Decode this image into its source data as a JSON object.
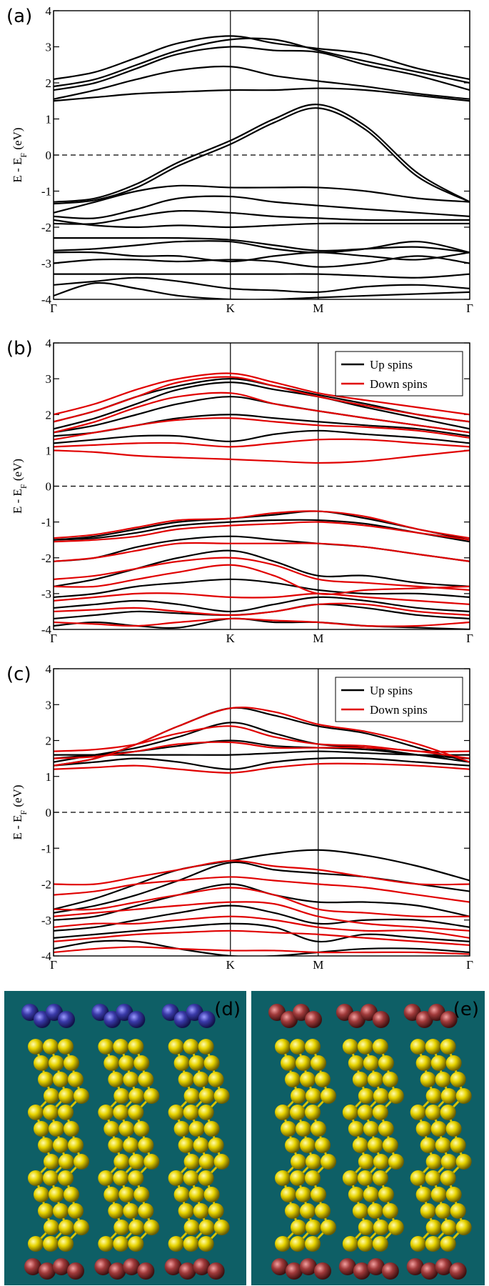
{
  "chart_data": [
    {
      "type": "line",
      "label": "(a)",
      "ylabel": {
        "text": "E - E",
        "sub": "F",
        "unit": " (eV)"
      },
      "x": [
        0,
        0.1,
        0.2,
        0.3,
        0.425,
        0.53,
        0.636,
        0.75,
        0.875,
        1
      ],
      "xlim": [
        0,
        1
      ],
      "xticks": [
        {
          "value": 0,
          "label": "Γ"
        },
        {
          "value": 0.425,
          "label": "K"
        },
        {
          "value": 0.636,
          "label": "M"
        },
        {
          "value": 1,
          "label": "Γ"
        }
      ],
      "ylim": [
        -4,
        4
      ],
      "yticks": [
        -4,
        -3,
        -2,
        -1,
        0,
        1,
        2,
        3,
        4
      ],
      "hline": 0,
      "series": [
        {
          "color": "#000000",
          "bands": [
            [
              2.1,
              2.3,
              2.7,
              3.1,
              3.3,
              3.1,
              2.95,
              2.8,
              2.4,
              2.1
            ],
            [
              1.9,
              2.1,
              2.5,
              2.9,
              3.2,
              3.2,
              2.9,
              2.6,
              2.3,
              2.0
            ],
            [
              1.8,
              2.0,
              2.4,
              2.8,
              3.0,
              2.9,
              2.85,
              2.5,
              2.2,
              1.8
            ],
            [
              1.55,
              1.8,
              2.1,
              2.35,
              2.45,
              2.2,
              2.05,
              1.9,
              1.7,
              1.55
            ],
            [
              1.5,
              1.6,
              1.7,
              1.75,
              1.8,
              1.8,
              1.85,
              1.8,
              1.65,
              1.5
            ],
            [
              -1.3,
              -1.2,
              -0.8,
              -0.2,
              0.4,
              1.0,
              1.4,
              0.8,
              -0.5,
              -1.3
            ],
            [
              -1.35,
              -1.25,
              -0.9,
              -0.3,
              0.3,
              0.9,
              1.3,
              0.7,
              -0.6,
              -1.3
            ],
            [
              -1.6,
              -1.3,
              -1.0,
              -0.85,
              -0.9,
              -0.9,
              -0.9,
              -1.0,
              -1.2,
              -1.3
            ],
            [
              -1.7,
              -1.75,
              -1.5,
              -1.2,
              -1.15,
              -1.3,
              -1.4,
              -1.5,
              -1.6,
              -1.7
            ],
            [
              -1.9,
              -1.9,
              -1.7,
              -1.55,
              -1.6,
              -1.7,
              -1.75,
              -1.8,
              -1.8,
              -1.8
            ],
            [
              -1.8,
              -1.95,
              -2.0,
              -1.95,
              -2.0,
              -1.95,
              -1.9,
              -1.9,
              -1.9,
              -1.9
            ],
            [
              -2.3,
              -2.3,
              -2.3,
              -2.3,
              -2.35,
              -2.5,
              -2.65,
              -2.6,
              -2.55,
              -2.7
            ],
            [
              -2.65,
              -2.6,
              -2.5,
              -2.4,
              -2.4,
              -2.6,
              -2.7,
              -2.6,
              -2.4,
              -2.7
            ],
            [
              -2.7,
              -2.7,
              -2.8,
              -2.8,
              -2.95,
              -2.8,
              -2.7,
              -2.8,
              -2.9,
              -2.7
            ],
            [
              -3.0,
              -2.9,
              -2.9,
              -2.95,
              -2.9,
              -2.95,
              -3.1,
              -3.0,
              -2.8,
              -3.0
            ],
            [
              -3.3,
              -3.3,
              -3.3,
              -3.3,
              -3.3,
              -3.3,
              -3.3,
              -3.35,
              -3.4,
              -3.3
            ],
            [
              -3.6,
              -3.5,
              -3.4,
              -3.5,
              -3.7,
              -3.75,
              -3.8,
              -3.65,
              -3.6,
              -3.7
            ],
            [
              -3.9,
              -3.55,
              -3.7,
              -3.9,
              -4.0,
              -4.0,
              -3.95,
              -3.9,
              -3.85,
              -3.8
            ]
          ]
        }
      ]
    },
    {
      "type": "line",
      "label": "(b)",
      "ylabel": {
        "text": "E - E",
        "sub": "F",
        "unit": " (eV)"
      },
      "x": [
        0,
        0.1,
        0.2,
        0.3,
        0.425,
        0.53,
        0.636,
        0.75,
        0.875,
        1
      ],
      "xlim": [
        0,
        1
      ],
      "xticks": [
        {
          "value": 0,
          "label": "Γ"
        },
        {
          "value": 0.425,
          "label": "K"
        },
        {
          "value": 0.636,
          "label": "M"
        },
        {
          "value": 1,
          "label": "Γ"
        }
      ],
      "ylim": [
        -4,
        4
      ],
      "yticks": [
        -4,
        -3,
        -2,
        -1,
        0,
        1,
        2,
        3,
        4
      ],
      "hline": 0,
      "legend": "upper right",
      "series": [
        {
          "name": "Up spins",
          "color": "#000000",
          "bands": [
            [
              1.8,
              2.1,
              2.5,
              2.8,
              3.0,
              2.8,
              2.55,
              2.3,
              2.0,
              1.8
            ],
            [
              1.6,
              1.9,
              2.3,
              2.7,
              2.9,
              2.7,
              2.5,
              2.2,
              1.9,
              1.6
            ],
            [
              1.5,
              1.7,
              2.0,
              2.3,
              2.5,
              2.3,
              2.1,
              1.9,
              1.7,
              1.5
            ],
            [
              1.4,
              1.5,
              1.7,
              1.9,
              2.0,
              1.9,
              1.8,
              1.7,
              1.6,
              1.4
            ],
            [
              1.2,
              1.3,
              1.4,
              1.4,
              1.25,
              1.45,
              1.55,
              1.45,
              1.35,
              1.2
            ],
            [
              -1.5,
              -1.4,
              -1.2,
              -1.0,
              -0.9,
              -0.8,
              -0.7,
              -0.9,
              -1.2,
              -1.5
            ],
            [
              -1.5,
              -1.45,
              -1.3,
              -1.1,
              -1.0,
              -0.95,
              -0.95,
              -1.05,
              -1.3,
              -1.55
            ],
            [
              -2.1,
              -2.0,
              -1.7,
              -1.5,
              -1.4,
              -1.5,
              -1.6,
              -1.7,
              -1.9,
              -2.1
            ],
            [
              -2.8,
              -2.6,
              -2.3,
              -2.0,
              -1.8,
              -2.1,
              -2.5,
              -2.5,
              -2.7,
              -2.8
            ],
            [
              -3.1,
              -3.0,
              -2.8,
              -2.7,
              -2.6,
              -2.7,
              -2.9,
              -3.0,
              -3.0,
              -3.1
            ],
            [
              -3.4,
              -3.3,
              -3.2,
              -3.3,
              -3.5,
              -3.3,
              -3.1,
              -3.2,
              -3.4,
              -3.5
            ],
            [
              -3.7,
              -3.6,
              -3.5,
              -3.55,
              -3.6,
              -3.5,
              -3.3,
              -3.4,
              -3.6,
              -3.7
            ],
            [
              -3.9,
              -3.8,
              -3.9,
              -3.95,
              -3.7,
              -3.8,
              -3.8,
              -3.9,
              -3.95,
              -4.0
            ]
          ]
        },
        {
          "name": "Down spins",
          "color": "#e00000",
          "bands": [
            [
              2.0,
              2.3,
              2.7,
              3.0,
              3.15,
              2.9,
              2.6,
              2.4,
              2.2,
              2.0
            ],
            [
              1.8,
              2.1,
              2.5,
              2.9,
              3.05,
              2.8,
              2.5,
              2.25,
              2.0,
              1.8
            ],
            [
              1.5,
              1.8,
              2.2,
              2.5,
              2.6,
              2.3,
              2.1,
              1.9,
              1.7,
              1.5
            ],
            [
              1.3,
              1.5,
              1.7,
              1.85,
              1.9,
              1.8,
              1.7,
              1.65,
              1.55,
              1.35
            ],
            [
              1.1,
              1.15,
              1.2,
              1.2,
              1.1,
              1.2,
              1.3,
              1.3,
              1.2,
              1.1
            ],
            [
              1.0,
              0.95,
              0.85,
              0.8,
              0.75,
              0.7,
              0.65,
              0.7,
              0.85,
              1.0
            ],
            [
              -1.45,
              -1.35,
              -1.15,
              -0.95,
              -0.9,
              -0.75,
              -0.7,
              -0.85,
              -1.2,
              -1.45
            ],
            [
              -1.55,
              -1.5,
              -1.4,
              -1.2,
              -1.1,
              -1.05,
              -1.0,
              -1.1,
              -1.3,
              -1.5
            ],
            [
              -2.1,
              -2.0,
              -1.8,
              -1.6,
              -1.6,
              -1.6,
              -1.6,
              -1.7,
              -1.9,
              -2.1
            ],
            [
              -2.6,
              -2.5,
              -2.3,
              -2.1,
              -2.0,
              -2.2,
              -2.6,
              -2.7,
              -2.8,
              -2.9
            ],
            [
              -2.8,
              -2.8,
              -2.6,
              -2.4,
              -2.2,
              -2.5,
              -3.0,
              -2.9,
              -2.85,
              -2.8
            ],
            [
              -3.2,
              -3.1,
              -3.0,
              -3.0,
              -3.1,
              -3.1,
              -3.0,
              -3.1,
              -3.2,
              -3.3
            ],
            [
              -3.5,
              -3.45,
              -3.4,
              -3.5,
              -3.6,
              -3.5,
              -3.3,
              -3.3,
              -3.5,
              -3.6
            ],
            [
              -3.8,
              -3.85,
              -3.9,
              -3.8,
              -3.7,
              -3.75,
              -3.8,
              -3.9,
              -3.9,
              -3.8
            ]
          ]
        }
      ]
    },
    {
      "type": "line",
      "label": "(c)",
      "ylabel": {
        "text": "E - E",
        "sub": "F",
        "unit": " (eV)"
      },
      "x": [
        0,
        0.1,
        0.2,
        0.3,
        0.425,
        0.53,
        0.636,
        0.75,
        0.875,
        1
      ],
      "xlim": [
        0,
        1
      ],
      "xticks": [
        {
          "value": 0,
          "label": "Γ"
        },
        {
          "value": 0.425,
          "label": "K"
        },
        {
          "value": 0.636,
          "label": "M"
        },
        {
          "value": 1,
          "label": "Γ"
        }
      ],
      "ylim": [
        -4,
        4
      ],
      "yticks": [
        -4,
        -3,
        -2,
        -1,
        0,
        1,
        2,
        3,
        4
      ],
      "hline": 0,
      "legend": "upper right",
      "series": [
        {
          "name": "Up spins",
          "color": "#000000",
          "bands": [
            [
              1.3,
              1.5,
              1.9,
              2.4,
              2.9,
              2.7,
              2.4,
              2.2,
              1.8,
              1.4
            ],
            [
              1.4,
              1.6,
              1.8,
              2.1,
              2.5,
              2.2,
              1.9,
              1.8,
              1.6,
              1.4
            ],
            [
              1.5,
              1.6,
              1.7,
              1.85,
              2.0,
              1.85,
              1.8,
              1.75,
              1.6,
              1.5
            ],
            [
              1.6,
              1.6,
              1.6,
              1.6,
              1.6,
              1.65,
              1.7,
              1.65,
              1.6,
              1.6
            ],
            [
              1.3,
              1.4,
              1.5,
              1.4,
              1.2,
              1.4,
              1.5,
              1.5,
              1.4,
              1.3
            ],
            [
              -2.7,
              -2.4,
              -2.0,
              -1.6,
              -1.35,
              -1.15,
              -1.05,
              -1.2,
              -1.5,
              -1.9
            ],
            [
              -2.8,
              -2.6,
              -2.3,
              -1.9,
              -1.4,
              -1.6,
              -1.7,
              -1.8,
              -2.0,
              -2.2
            ],
            [
              -3.0,
              -2.9,
              -2.6,
              -2.3,
              -2.0,
              -2.3,
              -2.5,
              -2.5,
              -2.6,
              -2.9
            ],
            [
              -3.3,
              -3.2,
              -3.0,
              -2.8,
              -2.6,
              -2.8,
              -3.1,
              -3.0,
              -3.0,
              -3.2
            ],
            [
              -3.5,
              -3.4,
              -3.3,
              -3.2,
              -3.1,
              -3.2,
              -3.6,
              -3.4,
              -3.5,
              -3.6
            ],
            [
              -3.8,
              -3.6,
              -3.6,
              -3.8,
              -4.0,
              -4.0,
              -3.9,
              -3.8,
              -3.8,
              -3.9
            ]
          ]
        },
        {
          "name": "Down spins",
          "color": "#e00000",
          "bands": [
            [
              1.3,
              1.5,
              1.9,
              2.4,
              2.9,
              2.8,
              2.45,
              2.25,
              1.9,
              1.4
            ],
            [
              1.7,
              1.75,
              1.9,
              2.2,
              2.4,
              2.1,
              1.9,
              1.85,
              1.7,
              1.7
            ],
            [
              1.5,
              1.55,
              1.7,
              1.9,
              1.95,
              1.8,
              1.8,
              1.8,
              1.7,
              1.5
            ],
            [
              1.2,
              1.25,
              1.3,
              1.2,
              1.1,
              1.25,
              1.35,
              1.35,
              1.3,
              1.2
            ],
            [
              -2.0,
              -2.0,
              -1.8,
              -1.6,
              -1.35,
              -1.5,
              -1.6,
              -1.8,
              -2.0,
              -2.0
            ],
            [
              -2.3,
              -2.2,
              -2.0,
              -1.9,
              -1.8,
              -1.9,
              -2.0,
              -2.1,
              -2.3,
              -2.5
            ],
            [
              -2.7,
              -2.7,
              -2.5,
              -2.3,
              -2.1,
              -2.3,
              -2.7,
              -2.8,
              -2.9,
              -2.9
            ],
            [
              -2.9,
              -2.8,
              -2.7,
              -2.6,
              -2.5,
              -2.55,
              -2.9,
              -3.1,
              -3.2,
              -3.3
            ],
            [
              -3.2,
              -3.1,
              -3.1,
              -3.0,
              -2.9,
              -3.0,
              -3.2,
              -3.3,
              -3.3,
              -3.5
            ],
            [
              -3.6,
              -3.5,
              -3.4,
              -3.35,
              -3.3,
              -3.35,
              -3.4,
              -3.5,
              -3.6,
              -3.7
            ],
            [
              -3.9,
              -3.8,
              -3.75,
              -3.8,
              -3.85,
              -3.85,
              -3.9,
              -3.9,
              -3.9,
              -3.95
            ]
          ]
        }
      ]
    }
  ],
  "images": [
    {
      "label": "(d)"
    },
    {
      "label": "(e)"
    }
  ]
}
